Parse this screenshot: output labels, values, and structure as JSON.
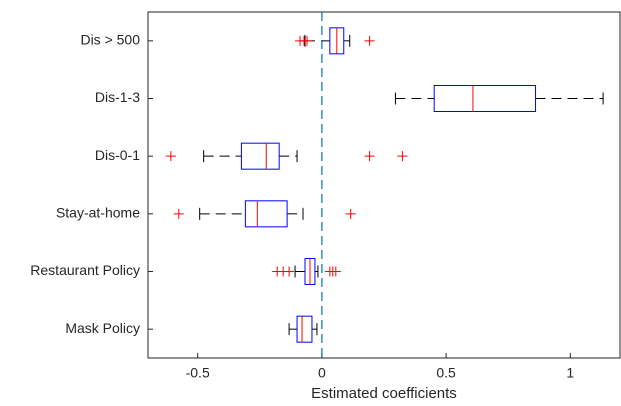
{
  "chart_data": {
    "type": "boxplot",
    "orientation": "horizontal",
    "xlabel": "Estimated coefficients",
    "categories": [
      "Dis > 500",
      "Dis-1-3",
      "Dis-0-1",
      "Stay-at-home",
      "Restaurant Policy",
      "Mask Policy"
    ],
    "boxes": [
      {
        "whisker_low": -0.068,
        "q1": 0.032,
        "median": 0.06,
        "q3": 0.088,
        "whisker_high": 0.112,
        "outliers": [
          -0.088,
          -0.072,
          -0.06,
          0.192
        ]
      },
      {
        "whisker_low": 0.296,
        "q1": 0.452,
        "median": 0.608,
        "q3": 0.86,
        "whisker_high": 1.132,
        "outliers": []
      },
      {
        "whisker_low": -0.476,
        "q1": -0.324,
        "median": -0.224,
        "q3": -0.172,
        "whisker_high": -0.1,
        "outliers": [
          -0.608,
          0.192,
          0.324
        ]
      },
      {
        "whisker_low": -0.492,
        "q1": -0.308,
        "median": -0.26,
        "q3": -0.14,
        "whisker_high": -0.076,
        "outliers": [
          -0.576,
          0.116
        ]
      },
      {
        "whisker_low": -0.108,
        "q1": -0.068,
        "median": -0.048,
        "q3": -0.028,
        "whisker_high": -0.016,
        "outliers": [
          -0.18,
          -0.156,
          -0.132,
          0.032,
          0.044,
          0.056
        ]
      },
      {
        "whisker_low": -0.132,
        "q1": -0.1,
        "median": -0.08,
        "q3": -0.04,
        "whisker_high": -0.02,
        "outliers": []
      }
    ],
    "box_color": "#0000ff",
    "median_color": "#ff0000",
    "whisker_color": "#000000",
    "outlier_color": "#ff0000",
    "reference_line": 0,
    "reference_color": "#0072bd",
    "xlim": [
      -0.7,
      1.2
    ],
    "xticks": [
      -0.5,
      0,
      0.5,
      1
    ],
    "grid": false
  }
}
